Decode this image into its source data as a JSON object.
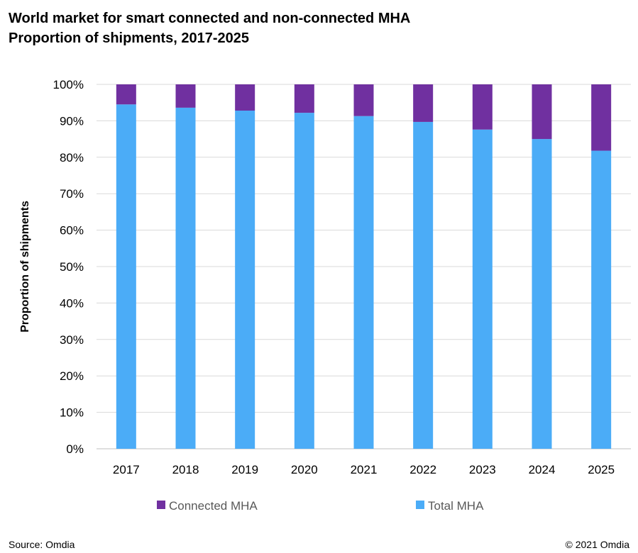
{
  "title_line1": "World market for smart connected and non-connected MHA",
  "title_line2": "Proportion of shipments, 2017-2025",
  "footer": {
    "source": "Source: Omdia",
    "copyright": "© 2021 Omdia"
  },
  "chart_data": {
    "type": "bar",
    "stacked": true,
    "categories": [
      "2017",
      "2018",
      "2019",
      "2020",
      "2021",
      "2022",
      "2023",
      "2024",
      "2025"
    ],
    "series": [
      {
        "name": "Total MHA",
        "color": "#4BACF7",
        "values": [
          94.5,
          93.6,
          92.8,
          92.2,
          91.3,
          89.7,
          87.6,
          85.0,
          81.8
        ]
      },
      {
        "name": "Connected MHA",
        "color": "#7030A0",
        "values": [
          5.5,
          6.4,
          7.2,
          7.8,
          8.7,
          10.3,
          12.4,
          15.0,
          18.2
        ]
      }
    ],
    "ylabel": "Proportion of shipments",
    "ylim": [
      0,
      100
    ],
    "yticks": [
      "0%",
      "10%",
      "20%",
      "30%",
      "40%",
      "50%",
      "60%",
      "70%",
      "80%",
      "90%",
      "100%"
    ],
    "legend_order": [
      "Connected MHA",
      "Total MHA"
    ],
    "legend_position": "bottom",
    "grid": true
  }
}
